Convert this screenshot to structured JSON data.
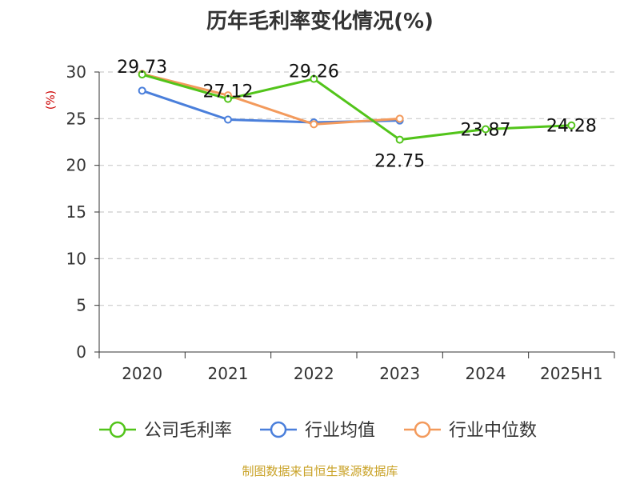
{
  "chart_data": {
    "type": "line",
    "title": "历年毛利率变化情况(%)",
    "ylabel": "(%)",
    "xlabel": "",
    "categories": [
      "2020",
      "2021",
      "2022",
      "2023",
      "2024",
      "2025H1"
    ],
    "ylim": [
      0,
      30
    ],
    "yticks": [
      0,
      5,
      10,
      15,
      20,
      25,
      30
    ],
    "grid": true,
    "legend_position": "bottom",
    "series": [
      {
        "name": "公司毛利率",
        "color": "#52c41a",
        "values": [
          29.73,
          27.12,
          29.26,
          22.75,
          23.87,
          24.28
        ],
        "labels": [
          "29.73",
          "27.12",
          "29.26",
          "22.75",
          "23.87",
          "24.28"
        ]
      },
      {
        "name": "行业均值",
        "color": "#4a7fdb",
        "values": [
          28.0,
          24.9,
          24.6,
          24.8,
          null,
          null
        ]
      },
      {
        "name": "行业中位数",
        "color": "#f39a5c",
        "values": [
          29.8,
          27.5,
          24.4,
          25.0,
          null,
          null
        ]
      }
    ]
  },
  "footer": {
    "source": "制图数据来自恒生聚源数据库"
  }
}
